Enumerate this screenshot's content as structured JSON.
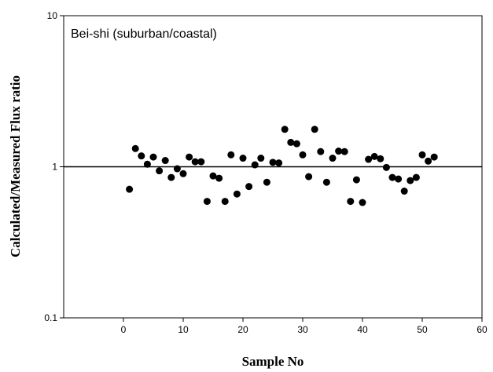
{
  "chart_data": {
    "type": "scatter",
    "title": "",
    "annotation": "Bei-shi (suburban/coastal)",
    "xlabel": "Sample No",
    "ylabel": "Calculated/Measured Flux ratio",
    "xlim": [
      -10,
      60
    ],
    "ylim": [
      0.1,
      10
    ],
    "yscale": "log",
    "xticks": [
      "0",
      "10",
      "20",
      "30",
      "40",
      "50",
      "60"
    ],
    "yticks": [
      "0.1",
      "1",
      "10"
    ],
    "reference_line_y": 1,
    "grid": false,
    "series": [
      {
        "x": [
          1,
          2,
          3,
          4,
          5,
          6,
          7,
          8,
          9,
          10,
          11,
          12,
          13,
          14,
          15,
          16,
          17,
          18,
          19,
          20,
          21,
          22,
          23,
          24,
          25,
          26,
          27,
          28,
          29,
          30,
          31,
          32,
          33,
          34,
          35,
          36,
          37,
          38,
          39,
          40,
          41,
          42,
          43,
          44,
          45,
          46,
          47,
          48,
          49,
          50,
          51,
          52
        ],
        "y": [
          0.71,
          1.32,
          1.18,
          1.04,
          1.16,
          0.94,
          1.1,
          0.85,
          0.97,
          0.9,
          1.16,
          1.08,
          1.08,
          0.59,
          0.87,
          0.84,
          0.59,
          1.2,
          0.66,
          1.14,
          0.74,
          1.03,
          1.14,
          0.79,
          1.07,
          1.06,
          1.77,
          1.45,
          1.42,
          1.2,
          0.86,
          1.77,
          1.26,
          0.79,
          1.14,
          1.27,
          1.26,
          0.59,
          0.82,
          0.58,
          1.12,
          1.17,
          1.13,
          0.99,
          0.85,
          0.83,
          0.69,
          0.81,
          0.85,
          1.2,
          1.09,
          1.16
        ]
      }
    ]
  }
}
